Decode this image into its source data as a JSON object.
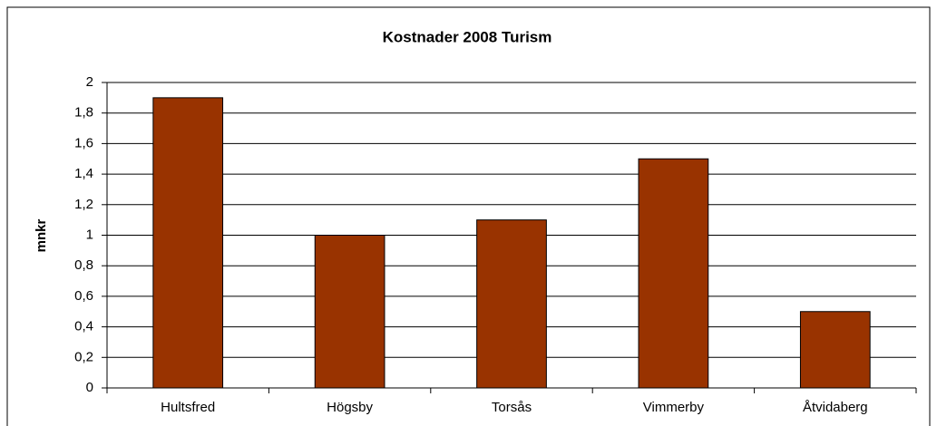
{
  "chart_data": {
    "type": "bar",
    "title": "Kostnader 2008 Turism",
    "y_label": "mnkr",
    "categories": [
      "Hultsfred",
      "Högsby",
      "Torsås",
      "Vimmerby",
      "Åtvidaberg"
    ],
    "values": [
      1.9,
      1.0,
      1.1,
      1.5,
      0.5
    ],
    "color": "#993300",
    "ylim": [
      0,
      2
    ],
    "yticks": [
      0,
      {
        "value": 0.2,
        "label": "0,2"
      },
      {
        "value": 0.4,
        "label": "0,4"
      },
      {
        "value": 0.6,
        "label": "0,6"
      },
      {
        "value": 0.8,
        "label": "0,8"
      },
      1,
      {
        "value": 1.2,
        "label": "1,2"
      },
      {
        "value": 1.4,
        "label": "1,4"
      },
      {
        "value": 1.6,
        "label": "1,6"
      },
      {
        "value": 1.8,
        "label": "1,8"
      },
      2
    ],
    "grid": true
  }
}
